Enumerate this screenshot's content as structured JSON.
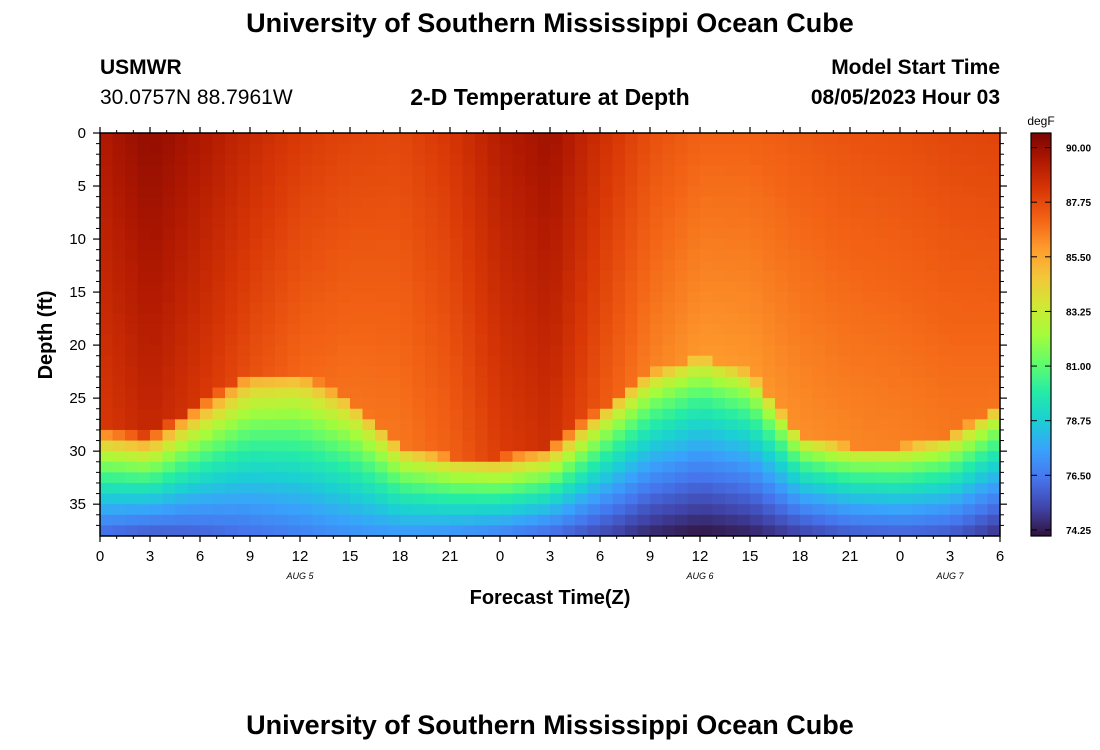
{
  "page": {
    "title": "University of Southern Mississippi Ocean Cube",
    "footer_title": "University of Southern Mississippi Ocean Cube",
    "station": "USMWR",
    "coords": "30.0757N  88.7961W",
    "plot_title": "2-D Temperature at Depth",
    "model_start_label": "Model Start Time",
    "model_start_value": "08/05/2023 Hour 03"
  },
  "chart_data": {
    "type": "heatmap",
    "title": "2-D Temperature at Depth",
    "xlabel": "Forecast Time(Z)",
    "ylabel": "Depth (ft)",
    "units": "degF",
    "x_range_hours": [
      0,
      54
    ],
    "y_range_ft": [
      0,
      38
    ],
    "x_ticks": [
      0,
      3,
      6,
      9,
      12,
      15,
      18,
      21,
      24,
      27,
      30,
      33,
      36,
      39,
      42,
      45,
      48,
      51,
      54
    ],
    "x_tick_labels": [
      "0",
      "3",
      "6",
      "9",
      "12",
      "15",
      "18",
      "21",
      "0",
      "3",
      "6",
      "9",
      "12",
      "15",
      "18",
      "21",
      "0",
      "3",
      "6"
    ],
    "y_ticks": [
      0,
      5,
      10,
      15,
      20,
      25,
      30,
      35
    ],
    "y_tick_labels": [
      "0",
      "5",
      "10",
      "15",
      "20",
      "25",
      "30",
      "35"
    ],
    "day_labels": [
      {
        "hour": 12,
        "text": "AUG 5"
      },
      {
        "hour": 36,
        "text": "AUG 6"
      },
      {
        "hour": 51,
        "text": "AUG 7"
      }
    ],
    "colorbar": {
      "label": "degF",
      "min": 74.0,
      "max": 90.6,
      "tick_values": [
        90.0,
        87.75,
        85.5,
        83.25,
        81.0,
        78.75,
        76.5,
        74.25
      ],
      "tick_labels": [
        "90.00",
        "87.75",
        "85.50",
        "83.25",
        "81.00",
        "78.75",
        "76.50",
        "74.25"
      ],
      "colors": [
        "#30123b",
        "#4145ab",
        "#4675ed",
        "#39a2fc",
        "#1bcfd4",
        "#24eca6",
        "#61fc6c",
        "#a4fc3b",
        "#d1e834",
        "#f3c63a",
        "#fe9b2d",
        "#f36315",
        "#d93806",
        "#b11901",
        "#7a0402"
      ]
    },
    "thermocline_depth_ft": [
      {
        "hour": 0,
        "depth": 28.0
      },
      {
        "hour": 3,
        "depth": 28.5
      },
      {
        "hour": 6,
        "depth": 25.5
      },
      {
        "hour": 9,
        "depth": 22.5
      },
      {
        "hour": 12,
        "depth": 22.5
      },
      {
        "hour": 15,
        "depth": 25.0
      },
      {
        "hour": 18,
        "depth": 29.5
      },
      {
        "hour": 21,
        "depth": 30.5
      },
      {
        "hour": 24,
        "depth": 30.5
      },
      {
        "hour": 27,
        "depth": 29.5
      },
      {
        "hour": 30,
        "depth": 26.0
      },
      {
        "hour": 33,
        "depth": 22.5
      },
      {
        "hour": 36,
        "depth": 21.0
      },
      {
        "hour": 39,
        "depth": 22.5
      },
      {
        "hour": 42,
        "depth": 28.5
      },
      {
        "hour": 45,
        "depth": 29.5
      },
      {
        "hour": 48,
        "depth": 29.5
      },
      {
        "hour": 51,
        "depth": 28.5
      },
      {
        "hour": 54,
        "depth": 25.5
      }
    ],
    "surface_temp_degF": [
      {
        "hour": 0,
        "temp": 89.4
      },
      {
        "hour": 3,
        "temp": 90.1
      },
      {
        "hour": 6,
        "temp": 89.5
      },
      {
        "hour": 9,
        "temp": 88.8
      },
      {
        "hour": 12,
        "temp": 88.2
      },
      {
        "hour": 15,
        "temp": 87.9
      },
      {
        "hour": 18,
        "temp": 87.8
      },
      {
        "hour": 21,
        "temp": 88.3
      },
      {
        "hour": 24,
        "temp": 89.3
      },
      {
        "hour": 27,
        "temp": 89.8
      },
      {
        "hour": 30,
        "temp": 88.6
      },
      {
        "hour": 33,
        "temp": 87.6
      },
      {
        "hour": 36,
        "temp": 87.1
      },
      {
        "hour": 39,
        "temp": 87.1
      },
      {
        "hour": 42,
        "temp": 87.3
      },
      {
        "hour": 45,
        "temp": 87.5
      },
      {
        "hour": 48,
        "temp": 87.6
      },
      {
        "hour": 51,
        "temp": 87.8
      },
      {
        "hour": 54,
        "temp": 87.9
      }
    ],
    "bottom_temp_degF": [
      {
        "hour": 0,
        "temp": 76.0
      },
      {
        "hour": 3,
        "temp": 75.6
      },
      {
        "hour": 6,
        "temp": 75.8
      },
      {
        "hour": 9,
        "temp": 76.2
      },
      {
        "hour": 12,
        "temp": 76.6
      },
      {
        "hour": 15,
        "temp": 77.0
      },
      {
        "hour": 18,
        "temp": 77.2
      },
      {
        "hour": 21,
        "temp": 77.0
      },
      {
        "hour": 24,
        "temp": 76.6
      },
      {
        "hour": 27,
        "temp": 76.0
      },
      {
        "hour": 30,
        "temp": 75.2
      },
      {
        "hour": 33,
        "temp": 74.4
      },
      {
        "hour": 36,
        "temp": 74.0
      },
      {
        "hour": 39,
        "temp": 74.3
      },
      {
        "hour": 42,
        "temp": 75.0
      },
      {
        "hour": 45,
        "temp": 75.6
      },
      {
        "hour": 48,
        "temp": 75.8
      },
      {
        "hour": 51,
        "temp": 75.6
      },
      {
        "hour": 54,
        "temp": 74.6
      }
    ]
  }
}
